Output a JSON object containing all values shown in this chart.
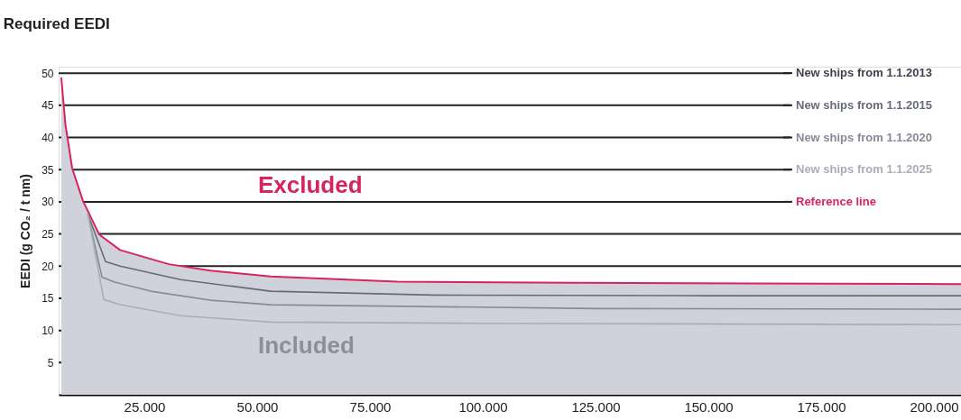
{
  "chart_data": {
    "type": "line",
    "title": "Required EEDI",
    "ylabel": "EEDI (g CO₂ / t nm)",
    "xlim": [
      6000,
      206000
    ],
    "ylim": [
      0,
      51
    ],
    "xticks": [
      {
        "value": 25000,
        "label": "25.000"
      },
      {
        "value": 50000,
        "label": "50.000"
      },
      {
        "value": 75000,
        "label": "75.000"
      },
      {
        "value": 100000,
        "label": "100.000"
      },
      {
        "value": 125000,
        "label": "125.000"
      },
      {
        "value": 150000,
        "label": "150.000"
      },
      {
        "value": 175000,
        "label": "175.000"
      },
      {
        "value": 200000,
        "label": "200.000"
      }
    ],
    "yticks": [
      5,
      10,
      15,
      20,
      25,
      30,
      35,
      40,
      45,
      50
    ],
    "grid": "y",
    "legend": "top right",
    "series": [
      {
        "name": "New ships from 1.1.2015",
        "color": "#666b77",
        "x": [
          12500,
          16400,
          19600,
          33000,
          53000,
          89000,
          150000,
          206000
        ],
        "values": [
          28,
          20.7,
          20,
          17.9,
          16.1,
          15.5,
          15.4,
          15.4
        ]
      },
      {
        "name": "New ships from 1.1.2020",
        "color": "#868a95",
        "x": [
          12500,
          15600,
          18400,
          26400,
          39600,
          53000,
          125000,
          206000
        ],
        "values": [
          28,
          18.3,
          17.5,
          16.1,
          14.7,
          14.0,
          13.4,
          13.3
        ]
      },
      {
        "name": "New ships from 1.1.2025",
        "color": "#a9adb6",
        "x": [
          12500,
          16000,
          19600,
          33000,
          53000,
          100000,
          206000
        ],
        "values": [
          28,
          14.8,
          14.0,
          12.3,
          11.3,
          11.1,
          10.9
        ]
      },
      {
        "name": "Reference line",
        "color": "#d6245f",
        "type": "area",
        "x": [
          6600,
          7500,
          9000,
          11400,
          15000,
          19600,
          30400,
          39600,
          53000,
          81000,
          120000,
          160000,
          206000
        ],
        "values": [
          49.2,
          42,
          35.2,
          30.1,
          24.9,
          22.5,
          20.3,
          19.3,
          18.4,
          17.6,
          17.4,
          17.3,
          17.2
        ]
      }
    ],
    "annotations": [
      "New ships from 1.1.2013",
      "Excluded",
      "Included"
    ]
  }
}
